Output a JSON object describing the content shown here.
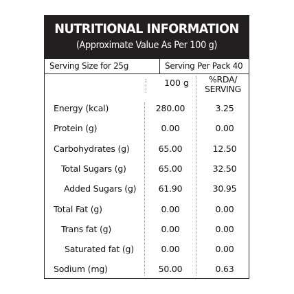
{
  "header": {
    "title": "NUTRITIONAL INFORMATION",
    "subtitle": "(Approximate Value As Per 100 g)"
  },
  "serving": {
    "size": "Serving Size for 25g",
    "per_pack": "Serving Per Pack 40"
  },
  "columns": {
    "per_100g": "100 g",
    "rda_line1": "%RDA/",
    "rda_line2": "SERVING"
  },
  "rows": [
    {
      "name": "Energy (kcal)",
      "per_100g": "280.00",
      "rda": "3.25"
    },
    {
      "name": "Protein (g)",
      "per_100g": "0.00",
      "rda": "0.00"
    },
    {
      "name": "Carbohydrates (g)",
      "per_100g": "65.00",
      "rda": "12.50"
    },
    {
      "name": "Total Sugars (g)",
      "per_100g": "65.00",
      "rda": "32.50"
    },
    {
      "name": "Added Sugars (g)",
      "per_100g": "61.90",
      "rda": "30.95"
    },
    {
      "name": "Total Fat (g)",
      "per_100g": "0.00",
      "rda": "0.00"
    },
    {
      "name": "Trans fat (g)",
      "per_100g": "0.00",
      "rda": "0.00"
    },
    {
      "name": "Saturated fat (g)",
      "per_100g": "0.00",
      "rda": "0.00"
    },
    {
      "name": "Sodium (mg)",
      "per_100g": "50.00",
      "rda": "0.63"
    }
  ]
}
